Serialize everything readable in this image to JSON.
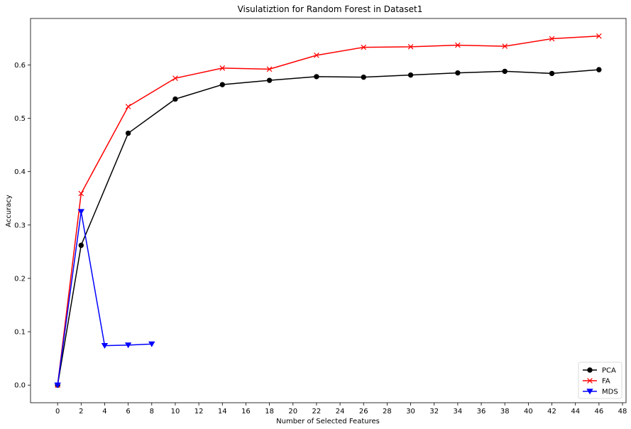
{
  "chart_data": {
    "type": "line",
    "title": "Visulatiztion for Random Forest in Dataset1",
    "xlabel": "Number of Selected Features",
    "ylabel": "Accuracy",
    "xlim": [
      -2.3,
      48.3
    ],
    "ylim": [
      -0.033,
      0.687
    ],
    "xticks": [
      0,
      2,
      4,
      6,
      8,
      10,
      12,
      14,
      16,
      18,
      20,
      22,
      24,
      26,
      28,
      30,
      32,
      34,
      36,
      38,
      40,
      42,
      44,
      46,
      48
    ],
    "yticks": [
      0.0,
      0.1,
      0.2,
      0.3,
      0.4,
      0.5,
      0.6
    ],
    "ytick_labels": [
      "0.0",
      "0.1",
      "0.2",
      "0.3",
      "0.4",
      "0.5",
      "0.6"
    ],
    "grid": false,
    "legend_position": "bottom-right",
    "series": [
      {
        "name": "PCA",
        "color": "#000000",
        "marker": "circle",
        "x": [
          0,
          2,
          6,
          10,
          14,
          18,
          22,
          26,
          30,
          34,
          38,
          42,
          46
        ],
        "y": [
          0.0,
          0.262,
          0.472,
          0.536,
          0.563,
          0.571,
          0.578,
          0.577,
          0.581,
          0.585,
          0.588,
          0.584,
          0.591
        ]
      },
      {
        "name": "FA",
        "color": "#ff0000",
        "marker": "x",
        "x": [
          0,
          2,
          6,
          10,
          14,
          18,
          22,
          26,
          30,
          34,
          38,
          42,
          46
        ],
        "y": [
          0.0,
          0.359,
          0.522,
          0.575,
          0.594,
          0.592,
          0.618,
          0.633,
          0.634,
          0.637,
          0.635,
          0.649,
          0.654
        ]
      },
      {
        "name": "MDS",
        "color": "#0000ff",
        "marker": "triangle-down",
        "x": [
          0,
          2,
          4,
          6,
          8
        ],
        "y": [
          0.0,
          0.325,
          0.074,
          0.075,
          0.077
        ]
      }
    ]
  }
}
